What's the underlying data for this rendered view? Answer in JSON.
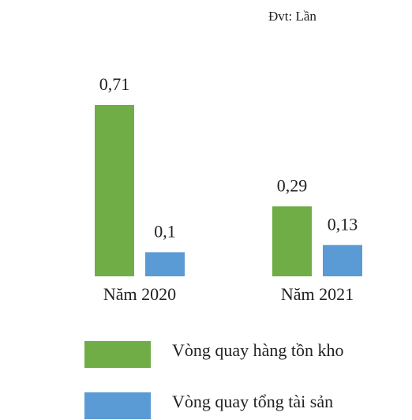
{
  "chart_data": {
    "type": "bar",
    "subtitle": "Đvt: Lần",
    "categories": [
      "Năm 2020",
      "Năm 2021"
    ],
    "series": [
      {
        "name": "Vòng quay hàng tồn kho",
        "color": "#70ad47",
        "values": [
          0.71,
          0.29
        ],
        "value_labels": [
          "0,71",
          "0,29"
        ]
      },
      {
        "name": "Vòng quay tổng tài sản",
        "color": "#5b9bd5",
        "values": [
          0.1,
          0.13
        ],
        "value_labels": [
          "0,1",
          "0,13"
        ]
      }
    ],
    "ylim": [
      0,
      0.8
    ]
  }
}
